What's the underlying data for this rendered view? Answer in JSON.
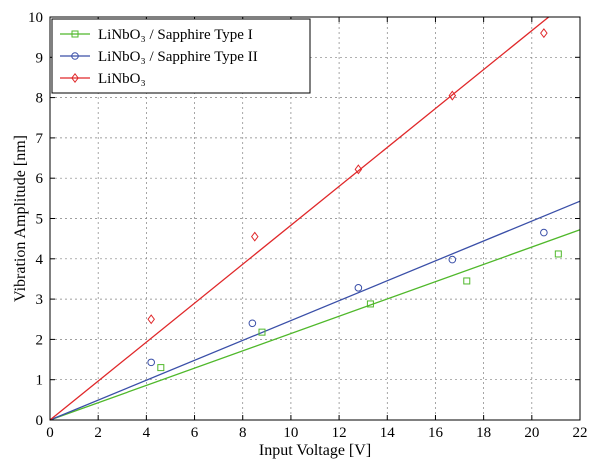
{
  "chart_data": {
    "type": "scatter",
    "xlabel": "Input Voltage [V]",
    "ylabel": "Vibration Amplitude [nm]",
    "xlim": [
      0,
      22
    ],
    "ylim": [
      0,
      10
    ],
    "xticks": [
      "0",
      "2",
      "4",
      "6",
      "8",
      "10",
      "12",
      "14",
      "16",
      "18",
      "20",
      "22"
    ],
    "yticks": [
      "0",
      "1",
      "2",
      "3",
      "4",
      "5",
      "6",
      "7",
      "8",
      "9",
      "10"
    ],
    "grid": true,
    "legend_position": "top-left",
    "series": [
      {
        "name": "LiNbO₃ / Sapphire Type I",
        "color": "#4fb82a",
        "marker": "square",
        "points": [
          [
            4.6,
            1.3
          ],
          [
            8.8,
            2.18
          ],
          [
            13.3,
            2.88
          ],
          [
            17.3,
            3.45
          ],
          [
            21.1,
            4.12
          ]
        ],
        "fit_line": [
          [
            0,
            0
          ],
          [
            22,
            4.72
          ]
        ]
      },
      {
        "name": "LiNbO₃ / Sapphire Type II",
        "color": "#3a4fa8",
        "marker": "circle",
        "points": [
          [
            4.2,
            1.43
          ],
          [
            8.4,
            2.4
          ],
          [
            12.8,
            3.28
          ],
          [
            16.7,
            3.98
          ],
          [
            20.5,
            4.65
          ]
        ],
        "fit_line": [
          [
            0,
            0
          ],
          [
            22,
            5.43
          ]
        ]
      },
      {
        "name": "LiNbO₃",
        "color": "#e0282a",
        "marker": "diamond",
        "points": [
          [
            4.2,
            2.5
          ],
          [
            8.5,
            4.55
          ],
          [
            12.8,
            6.22
          ],
          [
            16.7,
            8.05
          ],
          [
            20.5,
            9.6
          ]
        ],
        "fit_line": [
          [
            0,
            0
          ],
          [
            20.7,
            10
          ]
        ]
      }
    ]
  }
}
